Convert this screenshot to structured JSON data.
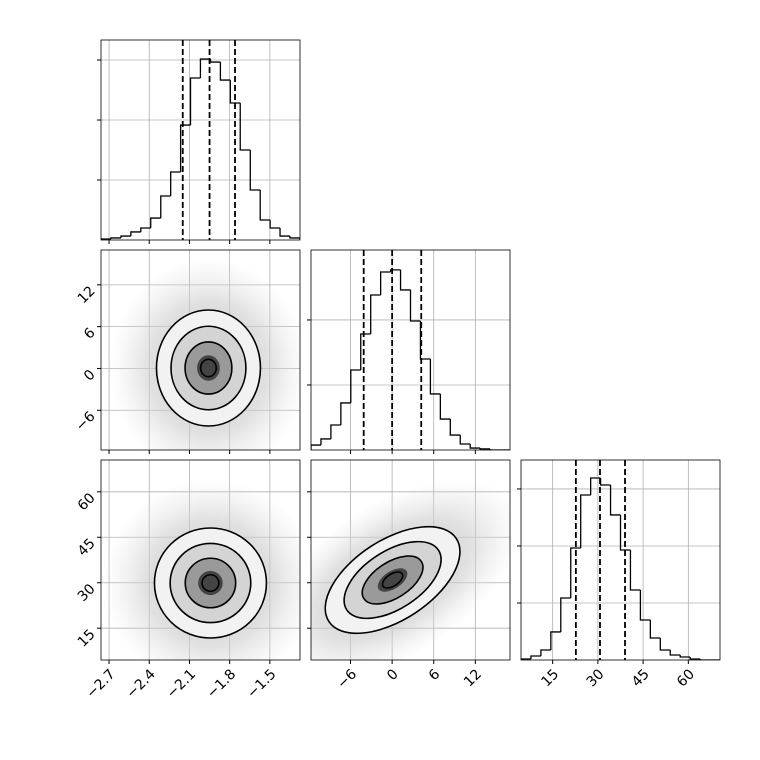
{
  "chart_data": [
    {
      "type": "histogram",
      "col": 0,
      "row": 0,
      "bins": [
        -2.76,
        -2.686,
        -2.611,
        -2.537,
        -2.463,
        -2.389,
        -2.314,
        -2.24,
        -2.166,
        -2.092,
        -2.018,
        -1.943,
        -1.869,
        -1.795,
        -1.721,
        -1.646,
        -1.572,
        -1.498,
        -1.424,
        -1.35,
        -1.275
      ],
      "values": [
        8,
        17,
        33,
        67,
        100,
        183,
        367,
        567,
        958,
        1350,
        1508,
        1483,
        1333,
        1142,
        750,
        417,
        167,
        100,
        33,
        17
      ],
      "quantiles": [
        -2.15,
        -1.95,
        -1.76
      ],
      "xlim": [
        -2.76,
        -1.275
      ],
      "xticks": [
        -2.7,
        -2.4,
        -2.1,
        -1.8,
        -1.5
      ],
      "ylim": [
        0,
        1667
      ],
      "yticks": [
        500,
        1000,
        1500
      ],
      "grid": true
    },
    {
      "type": "density2d",
      "col": 0,
      "row": 1,
      "xlim": [
        -2.76,
        -1.275
      ],
      "xticks": [
        -2.7,
        -2.4,
        -2.1,
        -1.8,
        -1.5
      ],
      "ylim": [
        -11.7,
        17
      ],
      "yticks": [
        {
          "value": -6,
          "label": "−6"
        },
        0,
        6,
        12
      ],
      "show_yticklabels": true,
      "grid": true
    },
    {
      "type": "histogram",
      "col": 1,
      "row": 1,
      "bins": [
        -11.7,
        -10.265,
        -8.83,
        -7.395,
        -5.96,
        -4.525,
        -3.09,
        -1.655,
        -0.22,
        1.215,
        2.65,
        4.085,
        5.52,
        6.955,
        8.39,
        9.825,
        11.26,
        12.695,
        14.13,
        15.565,
        17
      ],
      "values": [
        38,
        85,
        192,
        362,
        615,
        892,
        1192,
        1369,
        1385,
        1231,
        992,
        700,
        431,
        238,
        115,
        46,
        15,
        8,
        0,
        0
      ],
      "quantiles": [
        -4.1,
        0,
        4.2
      ],
      "xlim": [
        -11.7,
        17
      ],
      "xticks": [
        -6,
        0,
        6,
        12
      ],
      "ylim": [
        0,
        1538
      ],
      "yticks": [
        500,
        1000
      ],
      "grid": true
    },
    {
      "type": "density2d",
      "col": 0,
      "row": 2,
      "xlim": [
        -2.76,
        -1.275
      ],
      "xticks": [
        {
          "value": -2.7,
          "label": "−2.7"
        },
        {
          "value": -2.4,
          "label": "−2.4"
        },
        {
          "value": -2.1,
          "label": "−2.1"
        },
        {
          "value": -1.8,
          "label": "−1.8"
        },
        {
          "value": -1.5,
          "label": "−1.5"
        }
      ],
      "show_xticklabels": true,
      "ylim": [
        4.5,
        70.5
      ],
      "yticks": [
        15,
        30,
        45,
        60
      ],
      "show_yticklabels": true,
      "grid": true
    },
    {
      "type": "density2d",
      "col": 1,
      "row": 2,
      "xlim": [
        -11.7,
        17
      ],
      "xticks": [
        {
          "value": -6,
          "label": "−6"
        },
        0,
        6,
        12
      ],
      "show_xticklabels": true,
      "ylim": [
        4.5,
        70.5
      ],
      "yticks": [
        15,
        30,
        45,
        60
      ],
      "grid": true
    },
    {
      "type": "histogram",
      "col": 2,
      "row": 2,
      "bins": [
        4.5,
        7.8,
        11.1,
        14.4,
        17.7,
        21,
        24.3,
        27.6,
        30.9,
        34.2,
        37.5,
        40.8,
        44.1,
        47.4,
        50.7,
        54,
        57.3,
        60.6,
        63.9,
        67.2,
        70.5
      ],
      "values": [
        9,
        35,
        88,
        246,
        544,
        982,
        1447,
        1596,
        1535,
        1272,
        965,
        614,
        351,
        193,
        88,
        44,
        26,
        9,
        0,
        0
      ],
      "quantiles": [
        22.7,
        30.7,
        39
      ],
      "xlim": [
        4.5,
        70.5
      ],
      "xticks": [
        15,
        30,
        45,
        60
      ],
      "show_xticklabels": true,
      "ylim": [
        0,
        1754
      ],
      "yticks": [
        500,
        1000,
        1500
      ],
      "grid": true
    }
  ]
}
